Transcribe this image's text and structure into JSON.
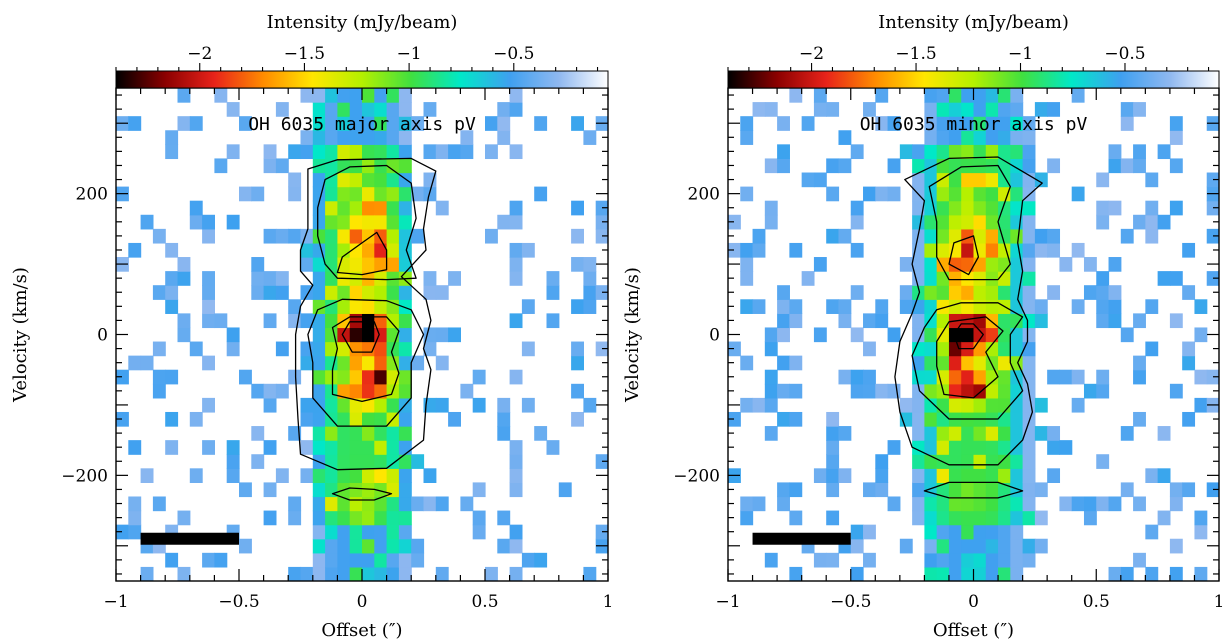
{
  "chart_data": [
    {
      "type": "heatmap",
      "title": "OH 6035 major axis pV",
      "xlabel": "Offset (″)",
      "ylabel": "Velocity (km/s)",
      "xlim": [
        -1,
        1
      ],
      "ylim": [
        -350,
        350
      ],
      "x_ticks": [
        -1,
        -0.5,
        0,
        0.5,
        1
      ],
      "x_tick_labels": [
        "−1",
        "−0.5",
        "0",
        "0.5",
        "1"
      ],
      "y_ticks": [
        -200,
        0,
        200
      ],
      "y_tick_labels": [
        "−200",
        "0",
        "200"
      ],
      "colorbar": {
        "label": "Intensity (mJy/beam)",
        "range": [
          -2.4,
          -0.05
        ],
        "ticks": [
          -2,
          -1.5,
          -1,
          -0.5
        ],
        "tick_labels": [
          "−2",
          "−1.5",
          "−1",
          "−0.5"
        ],
        "colormap": [
          "#000000",
          "#8b0000",
          "#e8231a",
          "#ff8c00",
          "#ffe600",
          "#b4f000",
          "#40e040",
          "#00e8c8",
          "#3fa0f0",
          "#8fb8f0",
          "#ffffff"
        ]
      },
      "scale_bar": {
        "x_start": -0.9,
        "x_end": -0.5,
        "y": -290
      },
      "pixel_size": {
        "dx": 0.05,
        "dv": 20
      },
      "emission": {
        "core_center": [
          0,
          5
        ],
        "core_peak": -2.4,
        "lower_knot": [
          0.04,
          -70
        ],
        "lower_peak": -2.0,
        "upper_knot": [
          0.03,
          120
        ],
        "upper_peak": -1.55,
        "lower_tail": [
          0,
          -230
        ],
        "lower_tail_peak": -1.1,
        "half_width": 0.2
      },
      "contours": [
        {
          "level": -0.9,
          "points": [
            [
              0.2,
              250
            ],
            [
              0.3,
              232
            ],
            [
              0.27,
              195
            ],
            [
              0.25,
              150
            ],
            [
              0.26,
              120
            ],
            [
              0.16,
              82
            ],
            [
              0.26,
              50
            ],
            [
              0.28,
              20
            ],
            [
              0.25,
              -20
            ],
            [
              0.28,
              -50
            ],
            [
              0.26,
              -100
            ],
            [
              0.25,
              -150
            ],
            [
              0.1,
              -190
            ],
            [
              -0.1,
              -192
            ],
            [
              -0.25,
              -170
            ],
            [
              -0.26,
              -120
            ],
            [
              -0.27,
              -60
            ],
            [
              -0.27,
              0
            ],
            [
              -0.25,
              40
            ],
            [
              -0.2,
              70
            ],
            [
              -0.25,
              90
            ],
            [
              -0.25,
              120
            ],
            [
              -0.22,
              150
            ],
            [
              -0.22,
              200
            ],
            [
              -0.22,
              235
            ],
            [
              -0.1,
              248
            ]
          ]
        },
        {
          "level": -1.2,
          "points": [
            [
              0.1,
              240
            ],
            [
              0.2,
              215
            ],
            [
              0.22,
              165
            ],
            [
              0.18,
              120
            ],
            [
              0.22,
              80
            ],
            [
              0.1,
              78
            ],
            [
              -0.1,
              80
            ],
            [
              -0.15,
              100
            ],
            [
              -0.18,
              140
            ],
            [
              -0.18,
              180
            ],
            [
              -0.15,
              220
            ],
            [
              -0.05,
              238
            ]
          ]
        },
        {
          "level": -1.5,
          "points": [
            [
              0.06,
              145
            ],
            [
              0.1,
              120
            ],
            [
              0.1,
              92
            ],
            [
              0.0,
              85
            ],
            [
              -0.1,
              88
            ],
            [
              -0.08,
              110
            ],
            [
              0.0,
              130
            ]
          ]
        },
        {
          "level": -1.2,
          "points": [
            [
              0.1,
              48
            ],
            [
              0.2,
              35
            ],
            [
              0.25,
              0
            ],
            [
              0.2,
              -40
            ],
            [
              0.2,
              -90
            ],
            [
              0.1,
              -130
            ],
            [
              -0.1,
              -130
            ],
            [
              -0.2,
              -90
            ],
            [
              -0.2,
              -40
            ],
            [
              -0.22,
              0
            ],
            [
              -0.18,
              35
            ],
            [
              -0.08,
              50
            ]
          ]
        },
        {
          "level": -1.7,
          "points": [
            [
              0.1,
              25
            ],
            [
              0.15,
              5
            ],
            [
              0.12,
              -25
            ],
            [
              0.15,
              -55
            ],
            [
              0.12,
              -85
            ],
            [
              0.0,
              -95
            ],
            [
              -0.12,
              -85
            ],
            [
              -0.12,
              -50
            ],
            [
              -0.1,
              -20
            ],
            [
              -0.12,
              10
            ],
            [
              -0.05,
              25
            ]
          ]
        },
        {
          "level": -2.1,
          "points": [
            [
              0.05,
              18
            ],
            [
              0.07,
              0
            ],
            [
              0.04,
              -25
            ],
            [
              -0.04,
              -25
            ],
            [
              -0.08,
              0
            ],
            [
              -0.05,
              18
            ]
          ]
        },
        {
          "level": -1.0,
          "points": [
            [
              0.05,
              -220
            ],
            [
              0.12,
              -226
            ],
            [
              0.05,
              -235
            ],
            [
              -0.05,
              -235
            ],
            [
              -0.12,
              -226
            ],
            [
              -0.05,
              -218
            ]
          ]
        }
      ]
    },
    {
      "type": "heatmap",
      "title": "OH 6035 minor axis pV",
      "xlabel": "Offset (″)",
      "ylabel": "Velocity (km/s)",
      "xlim": [
        -1,
        1
      ],
      "ylim": [
        -350,
        350
      ],
      "x_ticks": [
        -1,
        -0.5,
        0,
        0.5,
        1
      ],
      "x_tick_labels": [
        "−1",
        "−0.5",
        "0",
        "0.5",
        "1"
      ],
      "y_ticks": [
        -200,
        0,
        200
      ],
      "y_tick_labels": [
        "−200",
        "0",
        "200"
      ],
      "colorbar": {
        "label": "Intensity (mJy/beam)",
        "range": [
          -2.4,
          -0.05
        ],
        "ticks": [
          -2,
          -1.5,
          -1,
          -0.5
        ],
        "tick_labels": [
          "−2",
          "−1.5",
          "−1",
          "−0.5"
        ],
        "colormap": [
          "#000000",
          "#8b0000",
          "#e8231a",
          "#ff8c00",
          "#ffe600",
          "#b4f000",
          "#40e040",
          "#00e8c8",
          "#3fa0f0",
          "#8fb8f0",
          "#ffffff"
        ]
      },
      "scale_bar": {
        "x_start": -0.9,
        "x_end": -0.5,
        "y": -290
      },
      "pixel_size": {
        "dx": 0.05,
        "dv": 20
      },
      "emission": {
        "core_center": [
          -0.03,
          0
        ],
        "core_peak": -2.4,
        "lower_knot": [
          -0.03,
          -70
        ],
        "lower_peak": -2.0,
        "upper_knot": [
          -0.03,
          110
        ],
        "upper_peak": -1.5,
        "lower_tail": [
          0,
          -225
        ],
        "lower_tail_peak": -1.0,
        "half_width": 0.22
      },
      "contours": [
        {
          "level": -0.9,
          "points": [
            [
              0.1,
              252
            ],
            [
              0.28,
              215
            ],
            [
              0.2,
              190
            ],
            [
              0.18,
              130
            ],
            [
              0.2,
              90
            ],
            [
              0.18,
              50
            ],
            [
              0.22,
              20
            ],
            [
              0.22,
              -10
            ],
            [
              0.18,
              -40
            ],
            [
              0.22,
              -70
            ],
            [
              0.24,
              -110
            ],
            [
              0.2,
              -150
            ],
            [
              0.1,
              -185
            ],
            [
              -0.1,
              -185
            ],
            [
              -0.25,
              -160
            ],
            [
              -0.3,
              -110
            ],
            [
              -0.32,
              -60
            ],
            [
              -0.3,
              -10
            ],
            [
              -0.25,
              30
            ],
            [
              -0.22,
              60
            ],
            [
              -0.25,
              100
            ],
            [
              -0.22,
              150
            ],
            [
              -0.2,
              190
            ],
            [
              -0.28,
              220
            ],
            [
              -0.1,
              250
            ]
          ]
        },
        {
          "level": -1.2,
          "points": [
            [
              0.1,
              240
            ],
            [
              0.15,
              210
            ],
            [
              0.1,
              160
            ],
            [
              0.15,
              100
            ],
            [
              0.1,
              78
            ],
            [
              -0.1,
              78
            ],
            [
              -0.15,
              110
            ],
            [
              -0.15,
              160
            ],
            [
              -0.18,
              210
            ],
            [
              -0.05,
              238
            ]
          ]
        },
        {
          "level": -1.5,
          "points": [
            [
              0.0,
              140
            ],
            [
              0.02,
              110
            ],
            [
              -0.02,
              85
            ],
            [
              -0.1,
              100
            ],
            [
              -0.08,
              130
            ]
          ]
        },
        {
          "level": -1.2,
          "points": [
            [
              0.1,
              45
            ],
            [
              0.2,
              25
            ],
            [
              0.15,
              0
            ],
            [
              0.15,
              -40
            ],
            [
              0.2,
              -80
            ],
            [
              0.1,
              -120
            ],
            [
              -0.1,
              -120
            ],
            [
              -0.22,
              -80
            ],
            [
              -0.25,
              -30
            ],
            [
              -0.2,
              10
            ],
            [
              -0.15,
              35
            ],
            [
              -0.05,
              45
            ]
          ]
        },
        {
          "level": -1.7,
          "points": [
            [
              0.05,
              25
            ],
            [
              0.12,
              5
            ],
            [
              0.05,
              -25
            ],
            [
              0.1,
              -60
            ],
            [
              0.0,
              -90
            ],
            [
              -0.12,
              -85
            ],
            [
              -0.15,
              -45
            ],
            [
              -0.15,
              -10
            ],
            [
              -0.1,
              18
            ]
          ]
        },
        {
          "level": -2.1,
          "points": [
            [
              0.0,
              15
            ],
            [
              0.04,
              0
            ],
            [
              0.0,
              -20
            ],
            [
              -0.06,
              -20
            ],
            [
              -0.08,
              0
            ],
            [
              -0.05,
              15
            ]
          ]
        },
        {
          "level": -1.0,
          "points": [
            [
              0.1,
              -210
            ],
            [
              0.2,
              -222
            ],
            [
              0.1,
              -232
            ],
            [
              -0.1,
              -232
            ],
            [
              -0.2,
              -222
            ],
            [
              -0.1,
              -210
            ]
          ]
        }
      ]
    }
  ]
}
